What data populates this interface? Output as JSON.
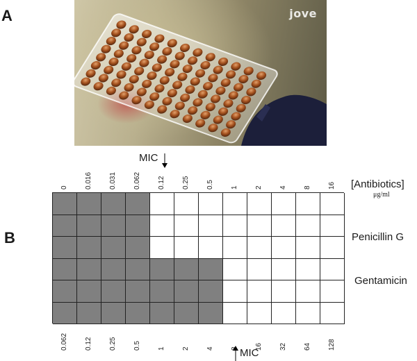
{
  "panel_a_label": "A",
  "panel_b_label": "B",
  "photo": {
    "watermark": "jove",
    "description_icon": "microplate-photo"
  },
  "mic_label": "MIC",
  "antibiotics_header": "[Antibiotics]",
  "unit": "μg/ml",
  "row_labels": {
    "penicillin": "Penicillin G",
    "gentamicin": "Gentamicin"
  },
  "top_concentrations": [
    "0",
    "0.016",
    "0.031",
    "0.062",
    "0.12",
    "0.25",
    "0.5",
    "1",
    "2",
    "4",
    "8",
    "16"
  ],
  "bottom_concentrations": [
    "0.062",
    "0.12",
    "0.25",
    "0.5",
    "1",
    "2",
    "4",
    "8",
    "16",
    "32",
    "64",
    "128"
  ],
  "grid": {
    "columns": 12,
    "rows": 6,
    "filled_columns_per_row": [
      4,
      4,
      4,
      7,
      7,
      7
    ],
    "filled_color": "#808080",
    "empty_color": "#ffffff"
  }
}
